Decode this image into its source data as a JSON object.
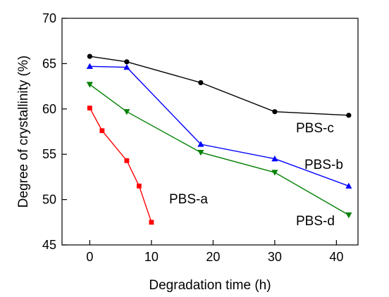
{
  "chart_data": {
    "type": "line",
    "xlabel": "Degradation time (h)",
    "ylabel": "Degree of crystallinity (%)",
    "xlim": [
      -4.5,
      43.5
    ],
    "ylim": [
      45,
      70
    ],
    "xticks": [
      0,
      10,
      20,
      30,
      40
    ],
    "yticks": [
      45,
      50,
      55,
      60,
      65,
      70
    ],
    "grid": false,
    "legend": "none",
    "series": [
      {
        "name": "PBS-c",
        "marker": "circle",
        "color": "#000000",
        "x": [
          0,
          6,
          18,
          30,
          42
        ],
        "y": [
          65.8,
          65.2,
          62.9,
          59.7,
          59.3
        ]
      },
      {
        "name": "PBS-b",
        "marker": "triangle-up",
        "color": "#0000ff",
        "x": [
          0,
          6,
          18,
          30,
          42
        ],
        "y": [
          64.7,
          64.6,
          56.1,
          54.5,
          51.5
        ]
      },
      {
        "name": "PBS-d",
        "marker": "triangle-down",
        "color": "#008000",
        "x": [
          0,
          6,
          18,
          30,
          42
        ],
        "y": [
          62.7,
          59.7,
          55.2,
          53.0,
          48.3
        ]
      },
      {
        "name": "PBS-a",
        "marker": "square",
        "color": "#ff0000",
        "x": [
          0,
          2,
          6,
          8,
          10
        ],
        "y": [
          60.1,
          57.6,
          54.3,
          51.5,
          47.5
        ]
      }
    ]
  }
}
